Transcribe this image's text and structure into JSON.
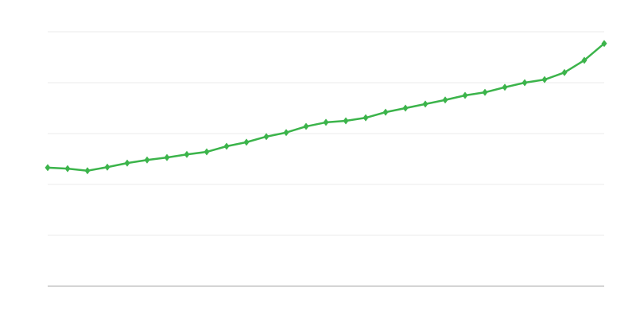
{
  "chart_data": {
    "type": "line",
    "title": "",
    "xlabel": "",
    "ylabel": "",
    "x": [
      1,
      2,
      3,
      4,
      5,
      6,
      7,
      8,
      9,
      10,
      11,
      12,
      13,
      14,
      15,
      16,
      17,
      18,
      19,
      20,
      21,
      22,
      23,
      24,
      25,
      26,
      27,
      28,
      29
    ],
    "series": [
      {
        "values": [
          2.33,
          2.31,
          2.27,
          2.34,
          2.42,
          2.48,
          2.53,
          2.59,
          2.64,
          2.75,
          2.83,
          2.94,
          3.02,
          3.14,
          3.22,
          3.25,
          3.31,
          3.42,
          3.5,
          3.58,
          3.66,
          3.75,
          3.81,
          3.91,
          4.0,
          4.06,
          4.2,
          4.44,
          4.77
        ],
        "color": "#3cb44b",
        "marker": "diamond"
      }
    ],
    "xlim": [
      1,
      29
    ],
    "ylim": [
      0,
      5
    ],
    "grid": true,
    "gridline_color": "#ebebeb",
    "axis_color": "#aaaaaa",
    "legend": "none"
  }
}
